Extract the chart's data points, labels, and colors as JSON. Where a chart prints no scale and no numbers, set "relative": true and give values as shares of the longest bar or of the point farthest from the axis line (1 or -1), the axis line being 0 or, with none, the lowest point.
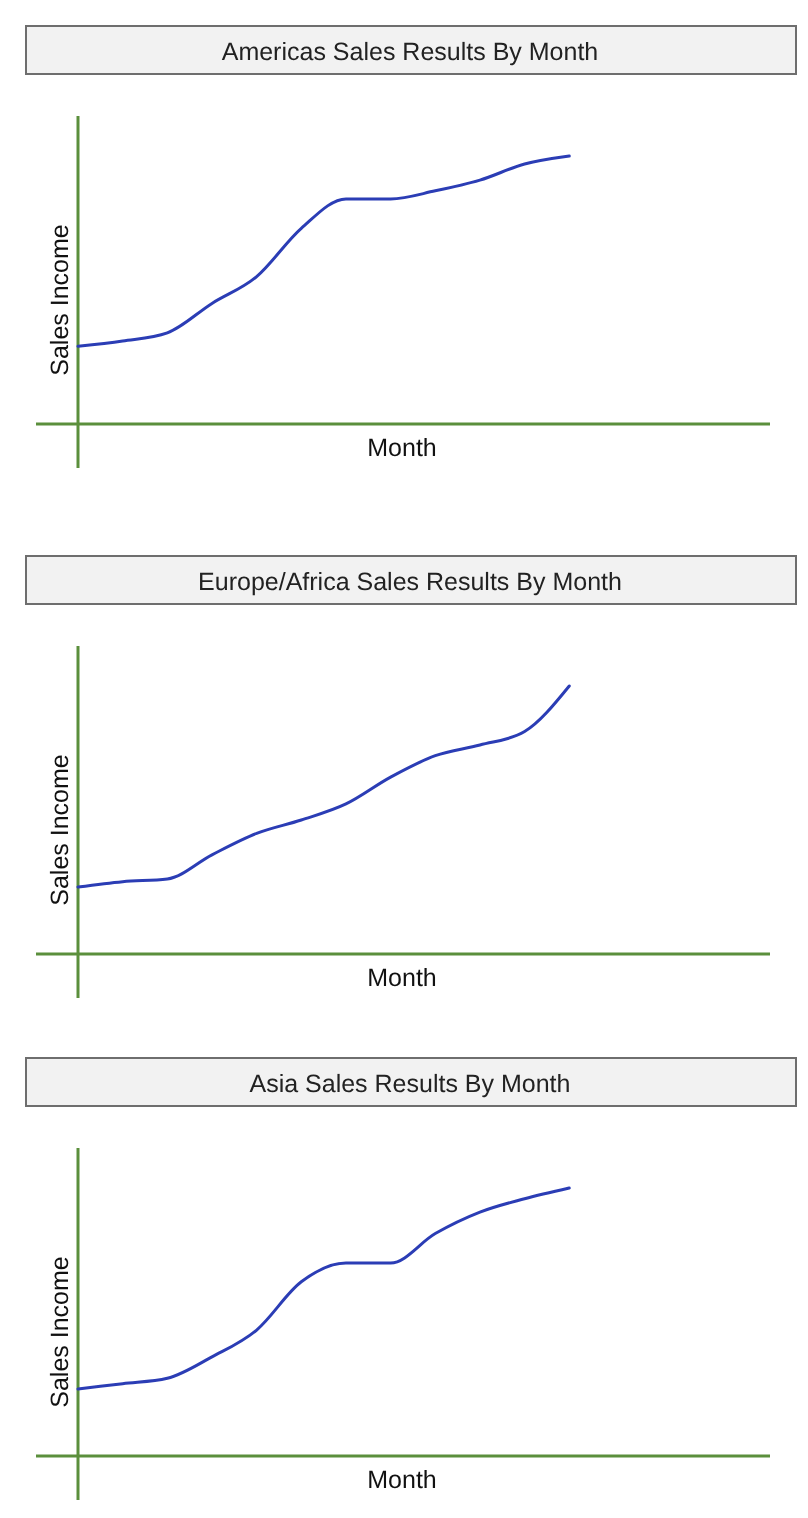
{
  "chart_data": [
    {
      "type": "line",
      "title": "Americas Sales Results By Month",
      "xlabel": "Month",
      "ylabel": "Sales Income",
      "relative": true,
      "categories": [
        null,
        null,
        null,
        null,
        null,
        null,
        null,
        null,
        null,
        null,
        null,
        null,
        null,
        null,
        null,
        null
      ],
      "series": [
        {
          "color": "#2b3db5",
          "values": [
            0.29,
            0.31,
            0.34,
            0.45,
            0.55,
            0.73,
            0.84,
            0.84,
            0.87,
            0.91,
            0.97,
            1,
            null,
            null,
            null,
            null
          ]
        }
      ]
    },
    {
      "type": "line",
      "title": "Europe/Africa Sales Results By Month",
      "xlabel": "Month",
      "ylabel": "Sales Income",
      "relative": true,
      "categories": [
        null,
        null,
        null,
        null,
        null,
        null,
        null,
        null,
        null,
        null,
        null,
        null,
        null,
        null,
        null,
        null
      ],
      "series": [
        {
          "color": "#2b3db5",
          "values": [
            0.25,
            0.27,
            0.28,
            0.37,
            0.45,
            0.5,
            0.56,
            0.66,
            0.74,
            0.78,
            0.83,
            1,
            null,
            null,
            null,
            null
          ]
        }
      ]
    },
    {
      "type": "line",
      "title": "Asia Sales Results By Month",
      "xlabel": "Month",
      "ylabel": "Sales Income",
      "relative": true,
      "categories": [
        null,
        null,
        null,
        null,
        null,
        null,
        null,
        null,
        null,
        null,
        null,
        null,
        null,
        null,
        null,
        null
      ],
      "series": [
        {
          "color": "#2b3db5",
          "values": [
            0.25,
            0.27,
            0.29,
            0.37,
            0.47,
            0.65,
            0.72,
            0.72,
            0.83,
            0.91,
            0.96,
            1,
            null,
            null,
            null,
            null
          ]
        }
      ]
    }
  ]
}
